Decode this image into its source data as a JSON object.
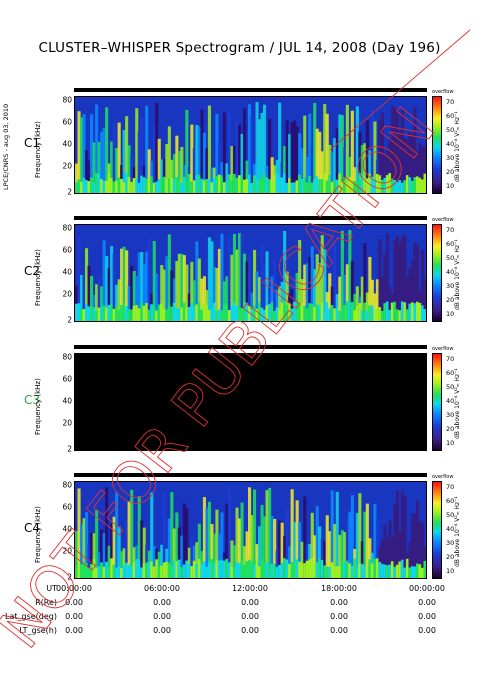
{
  "title": "CLUSTER–WHISPER Spectrogram / JUL 14, 2008 (Day 196)",
  "side_stamp": "LPCE/CNRS - aug 03, 2010",
  "panels": [
    {
      "label": "C1",
      "label_color": "#000000",
      "ylabel": "Frequency (kHz)",
      "yticks": [
        "80",
        "60",
        "40",
        "20",
        "2"
      ],
      "cb_title": "dB above 10⁻⁸ V²ₘ Hz⁻¹",
      "cb_head": "overflow",
      "cb_ticks": [
        "70",
        "60",
        "50",
        "40",
        "30",
        "20",
        "10"
      ],
      "has_data": true
    },
    {
      "label": "C2",
      "label_color": "#000000",
      "ylabel": "Frequency (kHz)",
      "yticks": [
        "80",
        "60",
        "40",
        "20",
        "2"
      ],
      "cb_title": "dB above 10⁻⁸ V²ₘ Hz⁻¹",
      "cb_head": "overflow",
      "cb_ticks": [
        "70",
        "60",
        "50",
        "40",
        "30",
        "20",
        "10"
      ],
      "has_data": true
    },
    {
      "label": "C3",
      "label_color": "#1fa84a",
      "ylabel": "Frequency (kHz)",
      "yticks": [
        "80",
        "60",
        "40",
        "20",
        "2"
      ],
      "cb_title": "dB above 10⁻⁸ V²ₘ Hz⁻¹",
      "cb_head": "overflow",
      "cb_ticks": [
        "70",
        "60",
        "50",
        "40",
        "30",
        "20",
        "10"
      ],
      "has_data": false
    },
    {
      "label": "C4",
      "label_color": "#000000",
      "ylabel": "Frequency (kHz)",
      "yticks": [
        "80",
        "60",
        "40",
        "20",
        "2"
      ],
      "cb_title": "dB above 10⁻⁸ V²ₘ Hz⁻¹",
      "cb_head": "overflow",
      "cb_ticks": [
        "70",
        "60",
        "50",
        "40",
        "30",
        "20",
        "10"
      ],
      "has_data": true
    }
  ],
  "time_axis": {
    "label": "UT",
    "ticks": [
      "00:00:00",
      "06:00:00",
      "12:00:00",
      "18:00:00",
      "00:00:00"
    ]
  },
  "ephemeris": [
    {
      "label": "R(Re)",
      "values": [
        "0.00",
        "0.00",
        "0.00",
        "0.00",
        "0.00"
      ]
    },
    {
      "label": "Lat_gse(deg)",
      "values": [
        "0.00",
        "0.00",
        "0.00",
        "0.00",
        "0.00"
      ]
    },
    {
      "label": "LT_gse(h)",
      "values": [
        "0.00",
        "0.00",
        "0.00",
        "0.00",
        "0.00"
      ]
    }
  ],
  "watermark": "NOT FOR PUBLICATION",
  "colors": {
    "watermark": "#e03030",
    "c3_label": "#1fa84a",
    "no_data": "#000000"
  },
  "chart_data": [
    {
      "type": "heatmap",
      "title": "CLUSTER–WHISPER Spectrogram / JUL 14, 2008 (Day 196)",
      "series_label": "C1",
      "xlabel": "UT",
      "ylabel": "Frequency (kHz)",
      "xlim": [
        "00:00:00",
        "00:00:00"
      ],
      "ylim": [
        2,
        80
      ],
      "colorbar_label": "dB above 10⁻⁸ V²ₘ Hz⁻¹",
      "colorbar_range": [
        10,
        70
      ],
      "has_data": true
    },
    {
      "type": "heatmap",
      "series_label": "C2",
      "xlabel": "UT",
      "ylabel": "Frequency (kHz)",
      "ylim": [
        2,
        80
      ],
      "colorbar_range": [
        10,
        70
      ],
      "has_data": true
    },
    {
      "type": "heatmap",
      "series_label": "C3",
      "xlabel": "UT",
      "ylabel": "Frequency (kHz)",
      "ylim": [
        2,
        80
      ],
      "colorbar_range": [
        10,
        70
      ],
      "has_data": false
    },
    {
      "type": "heatmap",
      "series_label": "C4",
      "xlabel": "UT",
      "ylabel": "Frequency (kHz)",
      "ylim": [
        2,
        80
      ],
      "colorbar_range": [
        10,
        70
      ],
      "has_data": true
    }
  ]
}
